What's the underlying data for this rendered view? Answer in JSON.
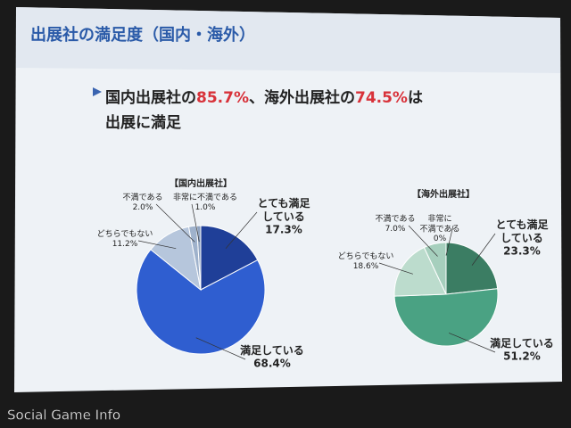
{
  "slide_title": "出展社の満足度（国内・海外）",
  "headline": {
    "line1": [
      "国内出展社の",
      "85.7%",
      "、海外出展社の",
      "74.5%",
      "は"
    ],
    "line2": "出展に満足"
  },
  "watermark": "Social Game Info",
  "chart_data": [
    {
      "type": "pie",
      "title": "【国内出展社】",
      "categories": [
        "とても満足\nしている",
        "満足している",
        "どちらでもない",
        "不満である",
        "非常に不満である"
      ],
      "values": [
        17.3,
        68.4,
        11.2,
        2.0,
        1.0
      ],
      "value_labels": [
        "17.3%",
        "68.4%",
        "11.2%",
        "2.0%",
        "1.0%"
      ],
      "colors": [
        "#1f3f98",
        "#2f5ed0",
        "#b6c6dc",
        "#9fb2cc",
        "#8ea2c0"
      ]
    },
    {
      "type": "pie",
      "title": "【海外出展社】",
      "categories": [
        "とても満足\nしている",
        "満足している",
        "どちらでもない",
        "不満である",
        "非常に\n不満である"
      ],
      "values": [
        23.3,
        51.2,
        18.6,
        7.0,
        0
      ],
      "value_labels": [
        "23.3%",
        "51.2%",
        "18.6%",
        "7.0%",
        "0%"
      ],
      "colors": [
        "#3b7d63",
        "#4aa283",
        "#bcdccd",
        "#a6cfbd",
        "#94c2ae"
      ]
    }
  ]
}
